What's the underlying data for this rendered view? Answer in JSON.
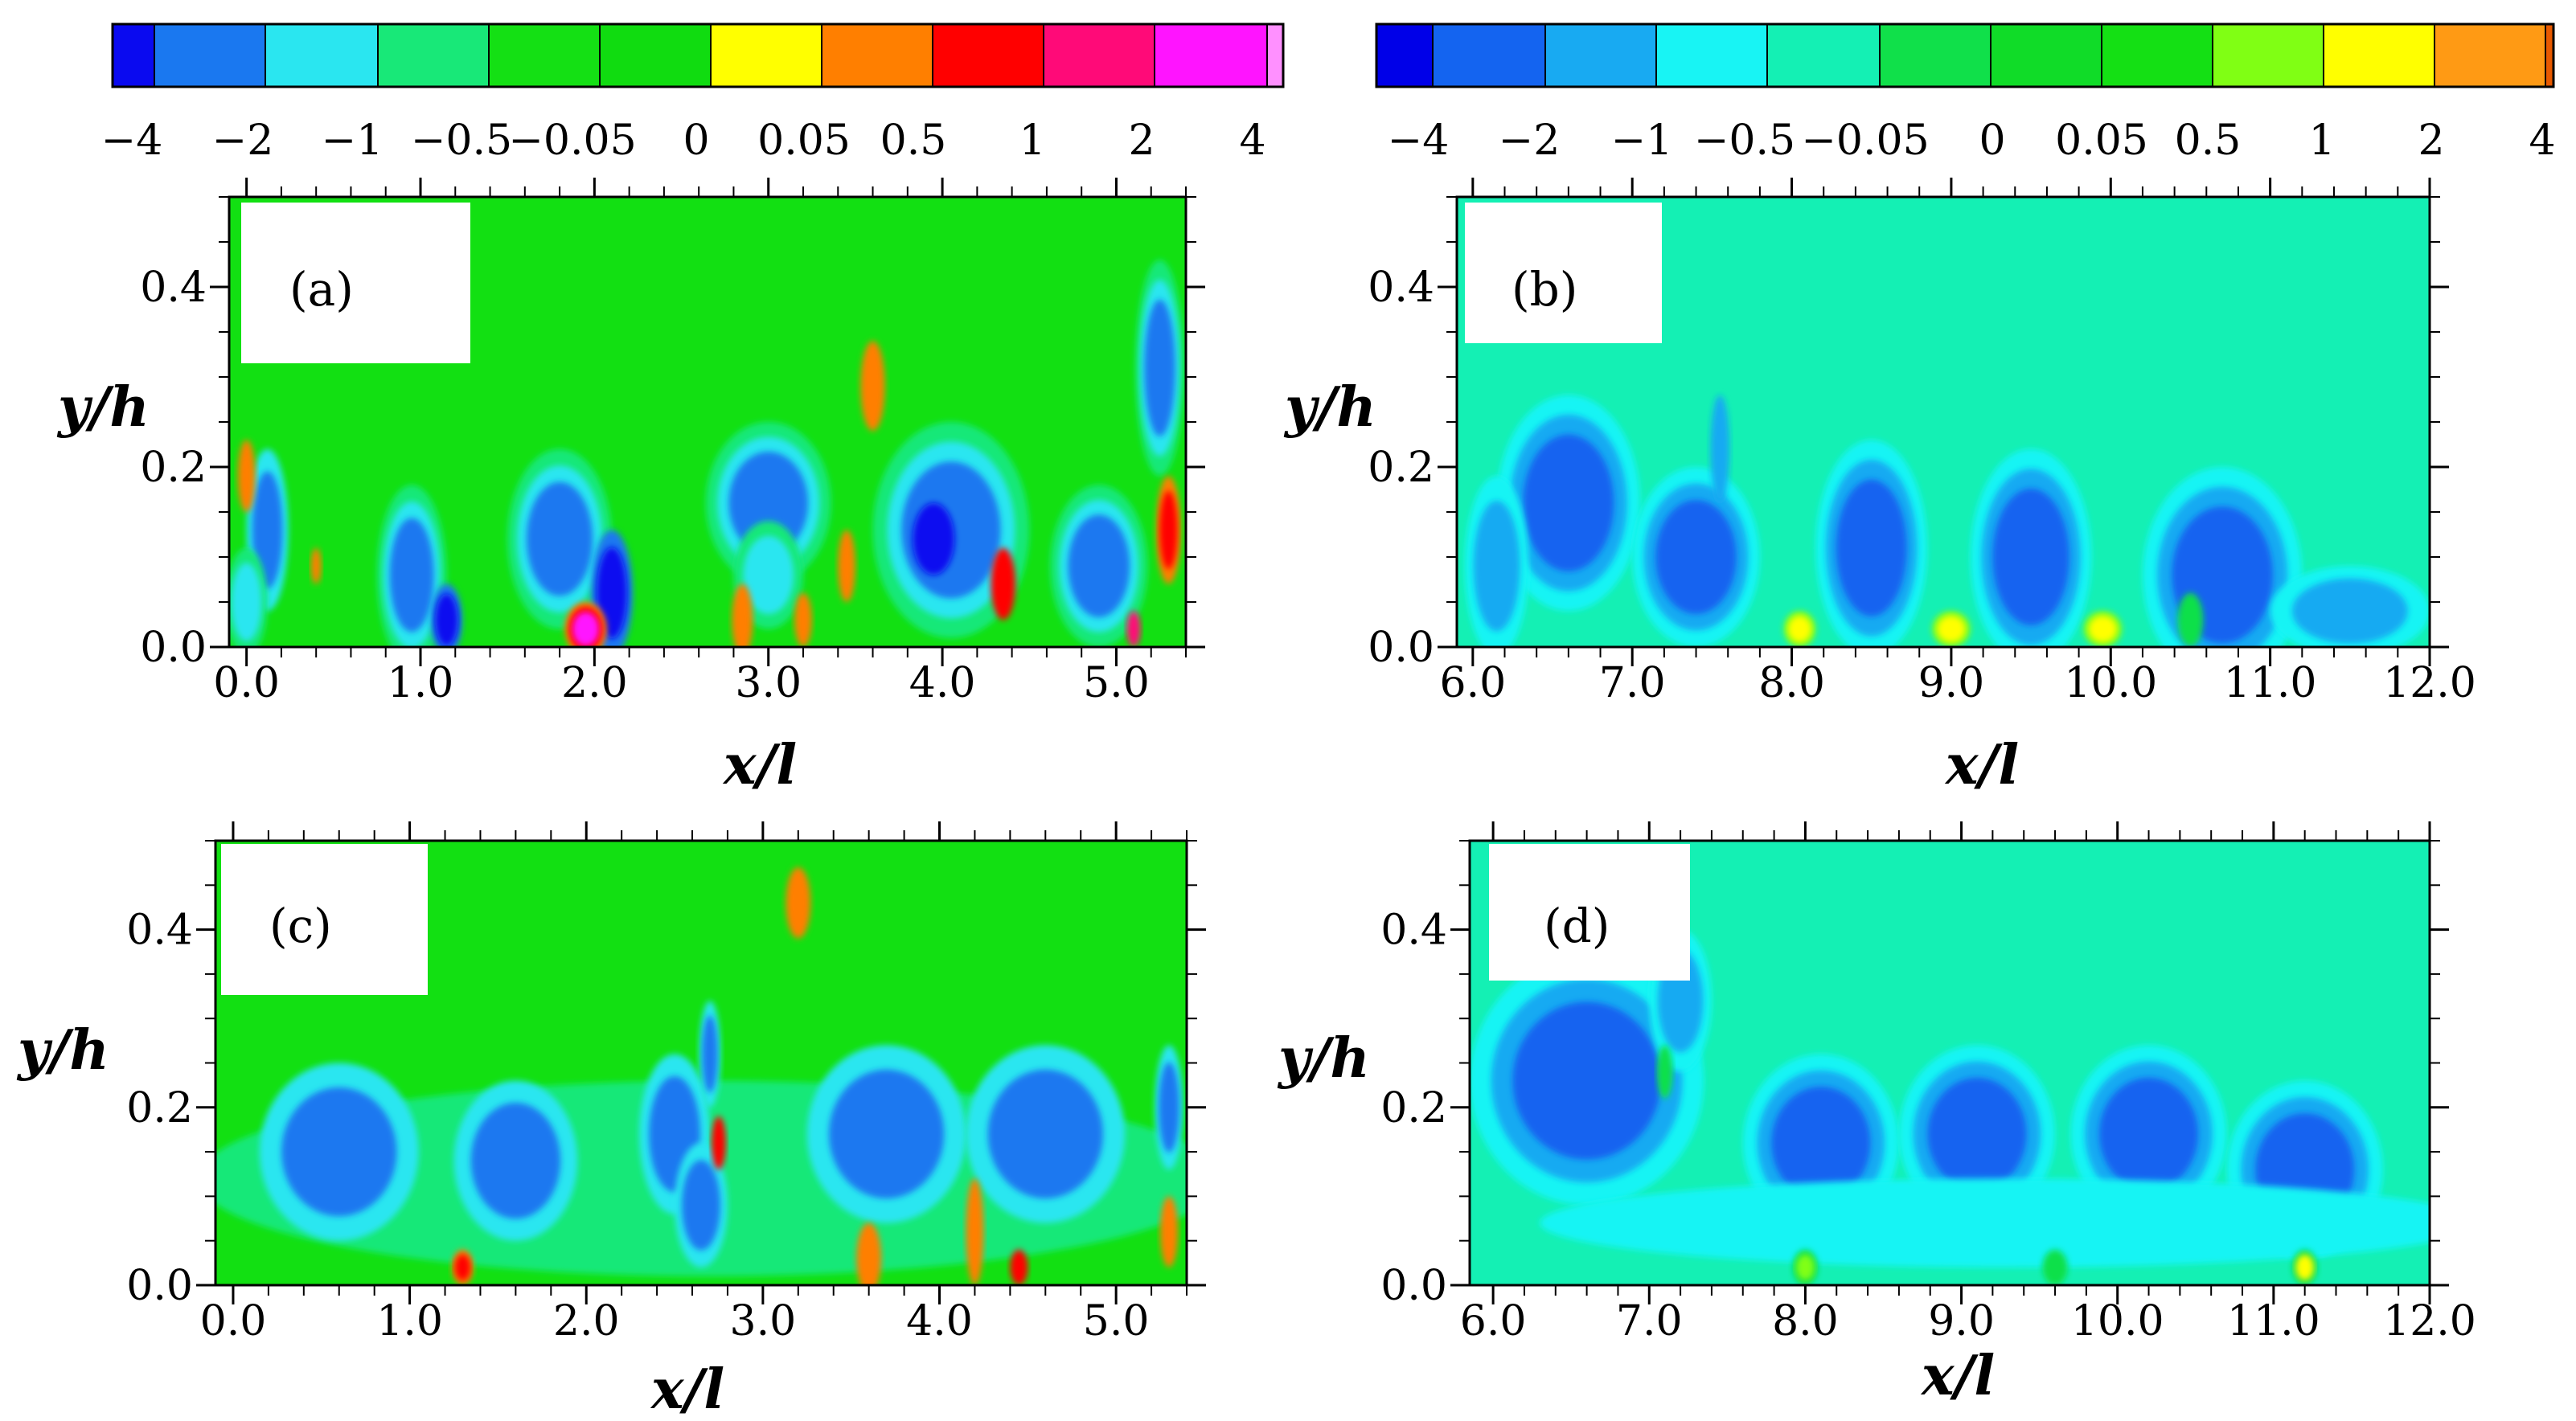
{
  "colorbars": [
    {
      "id": "left",
      "tick_labels": [
        "−4",
        "−2",
        "−1",
        "−0.5",
        "−0.05",
        "0",
        "0.05",
        "0.5",
        "1",
        "2",
        "4"
      ],
      "colors": [
        "#0a0af0",
        "#1a78f0",
        "#2ae6f0",
        "#18e878",
        "#14e014",
        "#10dc10",
        "#ffff00",
        "#ff7f00",
        "#ff0000",
        "#ff0a78",
        "#ff14ff",
        "#ff90ff"
      ]
    },
    {
      "id": "right",
      "tick_labels": [
        "−4",
        "−2",
        "−1",
        "−0.5",
        "−0.05",
        "0",
        "0.05",
        "0.5",
        "1",
        "2",
        "4"
      ],
      "colors": [
        "#0000e8",
        "#1464f0",
        "#18aaf2",
        "#18f4f4",
        "#14f0b4",
        "#10e04a",
        "#10dc28",
        "#14e014",
        "#80ff14",
        "#ffff00",
        "#ff9a14",
        "#e85a00"
      ]
    }
  ],
  "chart_data": [
    {
      "type": "heatmap",
      "panel_label": "(a)",
      "xlabel": "x/l",
      "ylabel": "y/h",
      "x_ticks": [
        "0.0",
        "1.0",
        "2.0",
        "3.0",
        "4.0",
        "5.0"
      ],
      "y_ticks": [
        "0.0",
        "0.2",
        "0.4"
      ],
      "xlim": [
        -0.1,
        5.4
      ],
      "ylim": [
        0,
        0.5
      ],
      "background": "#12e012",
      "blobs": [
        {
          "x": 0.12,
          "y": 0.13,
          "rx": 0.12,
          "ry": 0.09,
          "levels": [
            "#2ae6f0",
            "#1a78f0"
          ]
        },
        {
          "x": 0.0,
          "y": 0.05,
          "rx": 0.12,
          "ry": 0.06,
          "levels": [
            "#18e878",
            "#2ae6f0"
          ]
        },
        {
          "x": 0.95,
          "y": 0.08,
          "rx": 0.2,
          "ry": 0.1,
          "levels": [
            "#18e878",
            "#2ae6f0",
            "#1a78f0"
          ]
        },
        {
          "x": 1.15,
          "y": 0.03,
          "rx": 0.09,
          "ry": 0.04,
          "levels": [
            "#1a78f0",
            "#0a0af0"
          ]
        },
        {
          "x": 1.8,
          "y": 0.12,
          "rx": 0.3,
          "ry": 0.1,
          "levels": [
            "#18e878",
            "#2ae6f0",
            "#1a78f0"
          ]
        },
        {
          "x": 2.1,
          "y": 0.06,
          "rx": 0.12,
          "ry": 0.07,
          "levels": [
            "#1a78f0",
            "#0a0af0"
          ]
        },
        {
          "x": 3.0,
          "y": 0.16,
          "rx": 0.36,
          "ry": 0.09,
          "levels": [
            "#18e878",
            "#2ae6f0",
            "#1a78f0"
          ]
        },
        {
          "x": 3.0,
          "y": 0.08,
          "rx": 0.2,
          "ry": 0.06,
          "levels": [
            "#18e878",
            "#2ae6f0"
          ]
        },
        {
          "x": 4.05,
          "y": 0.13,
          "rx": 0.45,
          "ry": 0.12,
          "levels": [
            "#18e878",
            "#2ae6f0",
            "#1a78f0"
          ]
        },
        {
          "x": 3.95,
          "y": 0.12,
          "rx": 0.12,
          "ry": 0.04,
          "levels": [
            "#0a0af0"
          ]
        },
        {
          "x": 4.9,
          "y": 0.09,
          "rx": 0.28,
          "ry": 0.09,
          "levels": [
            "#18e878",
            "#2ae6f0",
            "#1a78f0"
          ]
        },
        {
          "x": 5.25,
          "y": 0.31,
          "rx": 0.14,
          "ry": 0.12,
          "levels": [
            "#18e878",
            "#2ae6f0",
            "#1a78f0"
          ]
        },
        {
          "x": 5.3,
          "y": 0.13,
          "rx": 0.07,
          "ry": 0.06,
          "levels": [
            "#ff7f00",
            "#ff0000"
          ]
        },
        {
          "x": 1.95,
          "y": 0.02,
          "rx": 0.12,
          "ry": 0.03,
          "levels": [
            "#ff7f00",
            "#ff0000",
            "#ff14ff"
          ]
        },
        {
          "x": 4.35,
          "y": 0.07,
          "rx": 0.07,
          "ry": 0.04,
          "levels": [
            "#ff0000"
          ]
        },
        {
          "x": 3.6,
          "y": 0.29,
          "rx": 0.07,
          "ry": 0.05,
          "levels": [
            "#ff7f00"
          ]
        },
        {
          "x": 0.0,
          "y": 0.19,
          "rx": 0.05,
          "ry": 0.04,
          "levels": [
            "#ff7f00"
          ]
        },
        {
          "x": 3.45,
          "y": 0.09,
          "rx": 0.05,
          "ry": 0.04,
          "levels": [
            "#ff7f00"
          ]
        },
        {
          "x": 0.4,
          "y": 0.09,
          "rx": 0.03,
          "ry": 0.02,
          "levels": [
            "#ff7f00"
          ]
        },
        {
          "x": 2.85,
          "y": 0.03,
          "rx": 0.06,
          "ry": 0.04,
          "levels": [
            "#ff7f00"
          ]
        },
        {
          "x": 3.2,
          "y": 0.03,
          "rx": 0.05,
          "ry": 0.03,
          "levels": [
            "#ff7f00"
          ]
        },
        {
          "x": 5.1,
          "y": 0.02,
          "rx": 0.04,
          "ry": 0.02,
          "levels": [
            "#ff0a78"
          ]
        }
      ]
    },
    {
      "type": "heatmap",
      "panel_label": "(b)",
      "xlabel": "x/l",
      "ylabel": "y/h",
      "x_ticks": [
        "6.0",
        "7.0",
        "8.0",
        "9.0",
        "10.0",
        "11.0",
        "12.0"
      ],
      "y_ticks": [
        "0.0",
        "0.2",
        "0.4"
      ],
      "xlim": [
        5.9,
        12.0
      ],
      "ylim": [
        0,
        0.5
      ],
      "background": "#14f0b4",
      "blobs": [
        {
          "x": 6.6,
          "y": 0.16,
          "rx": 0.45,
          "ry": 0.12,
          "levels": [
            "#18f4f4",
            "#18aaf2",
            "#1464f0"
          ]
        },
        {
          "x": 6.15,
          "y": 0.09,
          "rx": 0.2,
          "ry": 0.1,
          "levels": [
            "#18f4f4",
            "#18aaf2"
          ]
        },
        {
          "x": 7.4,
          "y": 0.1,
          "rx": 0.4,
          "ry": 0.1,
          "levels": [
            "#18f4f4",
            "#18aaf2",
            "#1464f0"
          ]
        },
        {
          "x": 7.55,
          "y": 0.22,
          "rx": 0.06,
          "ry": 0.06,
          "levels": [
            "#18aaf2"
          ]
        },
        {
          "x": 8.5,
          "y": 0.11,
          "rx": 0.35,
          "ry": 0.12,
          "levels": [
            "#18f4f4",
            "#18aaf2",
            "#1464f0"
          ]
        },
        {
          "x": 9.5,
          "y": 0.1,
          "rx": 0.38,
          "ry": 0.12,
          "levels": [
            "#18f4f4",
            "#18aaf2",
            "#1464f0"
          ]
        },
        {
          "x": 10.7,
          "y": 0.08,
          "rx": 0.5,
          "ry": 0.12,
          "levels": [
            "#18f4f4",
            "#18aaf2",
            "#1464f0"
          ]
        },
        {
          "x": 11.5,
          "y": 0.04,
          "rx": 0.5,
          "ry": 0.05,
          "levels": [
            "#18f4f4",
            "#18aaf2"
          ]
        },
        {
          "x": 8.05,
          "y": 0.02,
          "rx": 0.1,
          "ry": 0.02,
          "levels": [
            "#80ff14",
            "#ffff00"
          ]
        },
        {
          "x": 9.0,
          "y": 0.02,
          "rx": 0.12,
          "ry": 0.02,
          "levels": [
            "#80ff14",
            "#ffff00"
          ]
        },
        {
          "x": 9.95,
          "y": 0.02,
          "rx": 0.12,
          "ry": 0.02,
          "levels": [
            "#80ff14",
            "#ffff00"
          ]
        },
        {
          "x": 10.5,
          "y": 0.03,
          "rx": 0.08,
          "ry": 0.03,
          "levels": [
            "#10e04a"
          ]
        }
      ]
    },
    {
      "type": "heatmap",
      "panel_label": "(c)",
      "xlabel": "x/l",
      "ylabel": "y/h",
      "x_ticks": [
        "0.0",
        "1.0",
        "2.0",
        "3.0",
        "4.0",
        "5.0"
      ],
      "y_ticks": [
        "0.0",
        "0.2",
        "0.4"
      ],
      "xlim": [
        -0.1,
        5.4
      ],
      "ylim": [
        0,
        0.5
      ],
      "background": "#12e012",
      "blobs": [
        {
          "x": 2.7,
          "y": 0.12,
          "rx": 2.9,
          "ry": 0.11,
          "levels": [
            "#18e878"
          ]
        },
        {
          "x": 0.6,
          "y": 0.15,
          "rx": 0.45,
          "ry": 0.1,
          "levels": [
            "#2ae6f0",
            "#1a78f0"
          ]
        },
        {
          "x": 1.6,
          "y": 0.14,
          "rx": 0.35,
          "ry": 0.09,
          "levels": [
            "#2ae6f0",
            "#1a78f0"
          ]
        },
        {
          "x": 2.5,
          "y": 0.17,
          "rx": 0.2,
          "ry": 0.09,
          "levels": [
            "#2ae6f0",
            "#1a78f0"
          ]
        },
        {
          "x": 2.7,
          "y": 0.26,
          "rx": 0.06,
          "ry": 0.06,
          "levels": [
            "#2ae6f0",
            "#1a78f0"
          ]
        },
        {
          "x": 2.65,
          "y": 0.09,
          "rx": 0.15,
          "ry": 0.07,
          "levels": [
            "#2ae6f0",
            "#1a78f0"
          ]
        },
        {
          "x": 3.7,
          "y": 0.17,
          "rx": 0.45,
          "ry": 0.1,
          "levels": [
            "#2ae6f0",
            "#1a78f0"
          ]
        },
        {
          "x": 4.6,
          "y": 0.17,
          "rx": 0.45,
          "ry": 0.1,
          "levels": [
            "#2ae6f0",
            "#1a78f0"
          ]
        },
        {
          "x": 5.3,
          "y": 0.2,
          "rx": 0.08,
          "ry": 0.07,
          "levels": [
            "#2ae6f0",
            "#1a78f0"
          ]
        },
        {
          "x": 3.2,
          "y": 0.43,
          "rx": 0.07,
          "ry": 0.04,
          "levels": [
            "#ff7f00"
          ]
        },
        {
          "x": 2.75,
          "y": 0.16,
          "rx": 0.04,
          "ry": 0.03,
          "levels": [
            "#ff0000"
          ]
        },
        {
          "x": 3.6,
          "y": 0.03,
          "rx": 0.07,
          "ry": 0.04,
          "levels": [
            "#ff7f00"
          ]
        },
        {
          "x": 4.2,
          "y": 0.06,
          "rx": 0.05,
          "ry": 0.06,
          "levels": [
            "#ff7f00"
          ]
        },
        {
          "x": 1.3,
          "y": 0.02,
          "rx": 0.06,
          "ry": 0.02,
          "levels": [
            "#ff7f00",
            "#ff0000"
          ]
        },
        {
          "x": 4.45,
          "y": 0.02,
          "rx": 0.05,
          "ry": 0.02,
          "levels": [
            "#ff0000"
          ]
        },
        {
          "x": 5.3,
          "y": 0.06,
          "rx": 0.05,
          "ry": 0.04,
          "levels": [
            "#ff7f00"
          ]
        }
      ]
    },
    {
      "type": "heatmap",
      "panel_label": "(d)",
      "xlabel": "x/l",
      "ylabel": "y/h",
      "x_ticks": [
        "6.0",
        "7.0",
        "8.0",
        "9.0",
        "10.0",
        "11.0",
        "12.0"
      ],
      "y_ticks": [
        "0.0",
        "0.2",
        "0.4"
      ],
      "xlim": [
        5.85,
        12.0
      ],
      "ylim": [
        0,
        0.5
      ],
      "background": "#14f0b4",
      "blobs": [
        {
          "x": 6.6,
          "y": 0.23,
          "rx": 0.75,
          "ry": 0.14,
          "levels": [
            "#18f4f4",
            "#18aaf2",
            "#1464f0"
          ]
        },
        {
          "x": 7.2,
          "y": 0.32,
          "rx": 0.2,
          "ry": 0.08,
          "levels": [
            "#18f4f4",
            "#18aaf2"
          ]
        },
        {
          "x": 8.1,
          "y": 0.16,
          "rx": 0.5,
          "ry": 0.1,
          "levels": [
            "#18f4f4",
            "#18aaf2",
            "#1464f0"
          ]
        },
        {
          "x": 9.1,
          "y": 0.17,
          "rx": 0.5,
          "ry": 0.1,
          "levels": [
            "#18f4f4",
            "#18aaf2",
            "#1464f0"
          ]
        },
        {
          "x": 10.2,
          "y": 0.17,
          "rx": 0.5,
          "ry": 0.1,
          "levels": [
            "#18f4f4",
            "#18aaf2",
            "#1464f0"
          ]
        },
        {
          "x": 11.2,
          "y": 0.13,
          "rx": 0.5,
          "ry": 0.1,
          "levels": [
            "#18f4f4",
            "#18aaf2",
            "#1464f0"
          ]
        },
        {
          "x": 9.3,
          "y": 0.07,
          "rx": 3.0,
          "ry": 0.05,
          "levels": [
            "#18f4f4"
          ]
        },
        {
          "x": 8.0,
          "y": 0.02,
          "rx": 0.08,
          "ry": 0.02,
          "levels": [
            "#10e04a",
            "#80ff14"
          ]
        },
        {
          "x": 9.6,
          "y": 0.02,
          "rx": 0.08,
          "ry": 0.02,
          "levels": [
            "#10e04a"
          ]
        },
        {
          "x": 11.2,
          "y": 0.02,
          "rx": 0.08,
          "ry": 0.02,
          "levels": [
            "#10e04a",
            "#ffff00"
          ]
        },
        {
          "x": 7.1,
          "y": 0.24,
          "rx": 0.05,
          "ry": 0.03,
          "levels": [
            "#10e04a"
          ]
        }
      ]
    }
  ]
}
